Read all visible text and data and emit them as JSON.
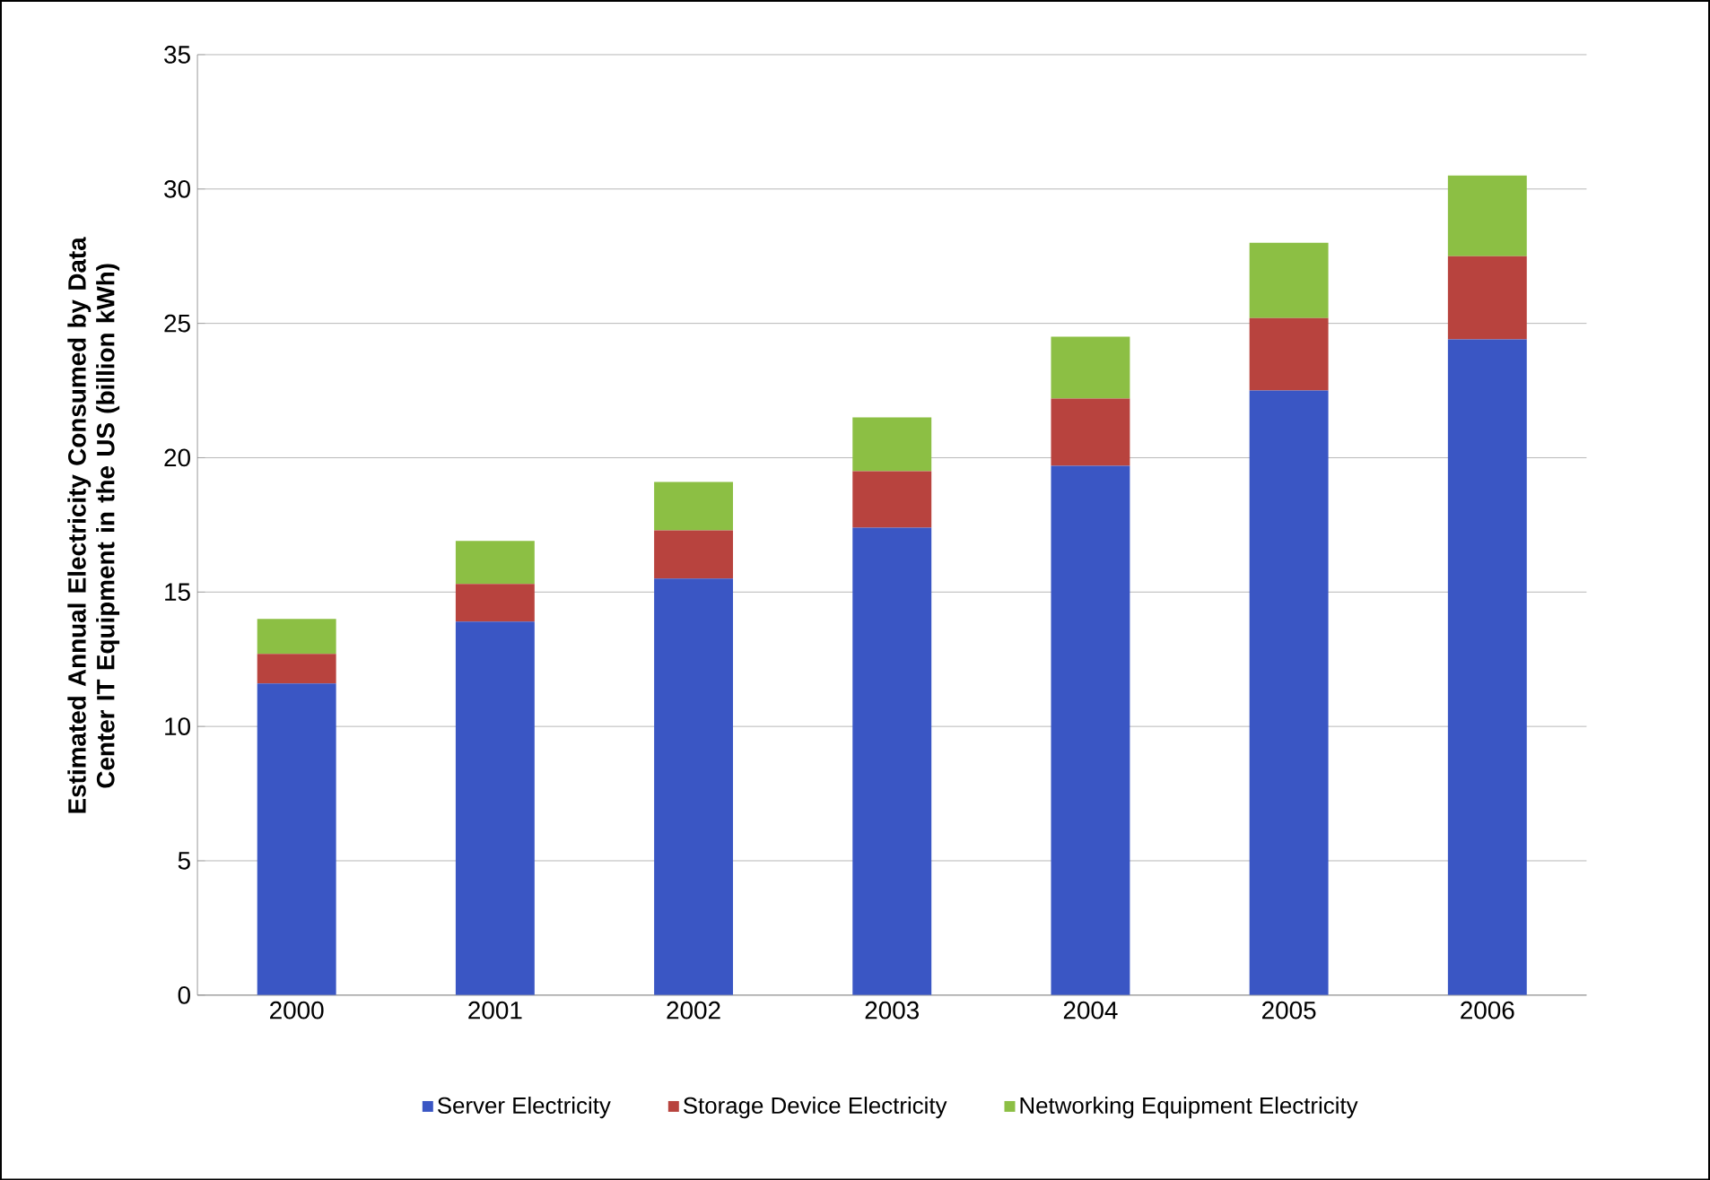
{
  "chart_data": {
    "type": "bar",
    "stacked": true,
    "ylabel": "Estimated Annual Electricity Consumed by Data Center IT Equipment in the US (billion kWh)",
    "categories": [
      "2000",
      "2001",
      "2002",
      "2003",
      "2004",
      "2005",
      "2006"
    ],
    "series": [
      {
        "name": "Server Electricity",
        "color": "#3a56c4",
        "values": [
          11.6,
          13.9,
          15.5,
          17.4,
          19.7,
          22.5,
          24.4
        ]
      },
      {
        "name": "Storage Device Electricity",
        "color": "#b8433e",
        "values": [
          1.1,
          1.4,
          1.8,
          2.1,
          2.5,
          2.7,
          3.1
        ]
      },
      {
        "name": "Networking Equipment Electricity",
        "color": "#8cbf44",
        "values": [
          1.3,
          1.6,
          1.8,
          2.0,
          2.3,
          2.8,
          3.0
        ]
      }
    ],
    "ylim": [
      0,
      35
    ],
    "yticks": [
      0,
      5,
      10,
      15,
      20,
      25,
      30,
      35
    ],
    "grid": "y",
    "legend": "bottom"
  }
}
